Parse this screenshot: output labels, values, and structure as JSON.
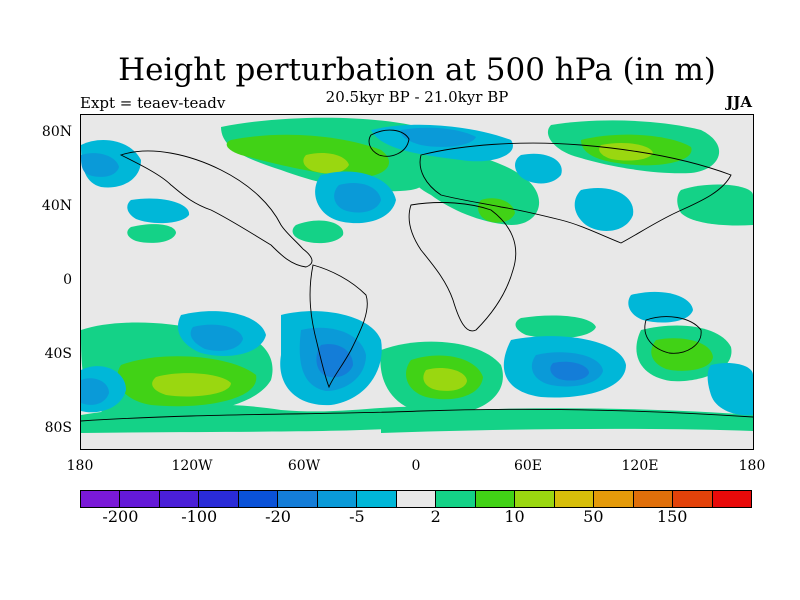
{
  "title": "Height perturbation at 500 hPa (in m)",
  "subtitle": "20.5kyr BP - 21.0kyr BP",
  "left_label": "Expt = teaev-teadv",
  "right_label": "JJA",
  "lat_ticks": [
    {
      "label": "80N",
      "lat": 80
    },
    {
      "label": "40N",
      "lat": 40
    },
    {
      "label": "0",
      "lat": 0
    },
    {
      "label": "40S",
      "lat": -40
    },
    {
      "label": "80S",
      "lat": -80
    }
  ],
  "lon_ticks": [
    {
      "label": "180",
      "lon": -180
    },
    {
      "label": "120W",
      "lon": -120
    },
    {
      "label": "60W",
      "lon": -60
    },
    {
      "label": "0",
      "lon": 0
    },
    {
      "label": "60E",
      "lon": 60
    },
    {
      "label": "120E",
      "lon": 120
    },
    {
      "label": "180",
      "lon": 180
    }
  ],
  "colorbar": {
    "colors": [
      "#7a19d8",
      "#6419d8",
      "#4a1fd8",
      "#2a2bd8",
      "#0a52d8",
      "#147dd8",
      "#0a9ad8",
      "#00b7d8",
      "#e8e8e8",
      "#14d287",
      "#41d216",
      "#9ad710",
      "#d7be0a",
      "#e49a0a",
      "#e06f0a",
      "#e3420a",
      "#e80a0a"
    ],
    "labels": [
      {
        "text": "-200",
        "boundary": 1
      },
      {
        "text": "-100",
        "boundary": 3
      },
      {
        "text": "-20",
        "boundary": 5
      },
      {
        "text": "-5",
        "boundary": 7
      },
      {
        "text": "2",
        "boundary": 9
      },
      {
        "text": "10",
        "boundary": 11
      },
      {
        "text": "50",
        "boundary": 13
      },
      {
        "text": "150",
        "boundary": 15
      }
    ]
  },
  "map_colors": {
    "background": "#e8e8e8",
    "neg_light": "#00b7d8",
    "neg_mid": "#0a9ad8",
    "neg_strong": "#147dd8",
    "pos_light": "#14d287",
    "pos_mid": "#41d216",
    "pos_strong": "#9ad710",
    "coast": "#000000"
  }
}
